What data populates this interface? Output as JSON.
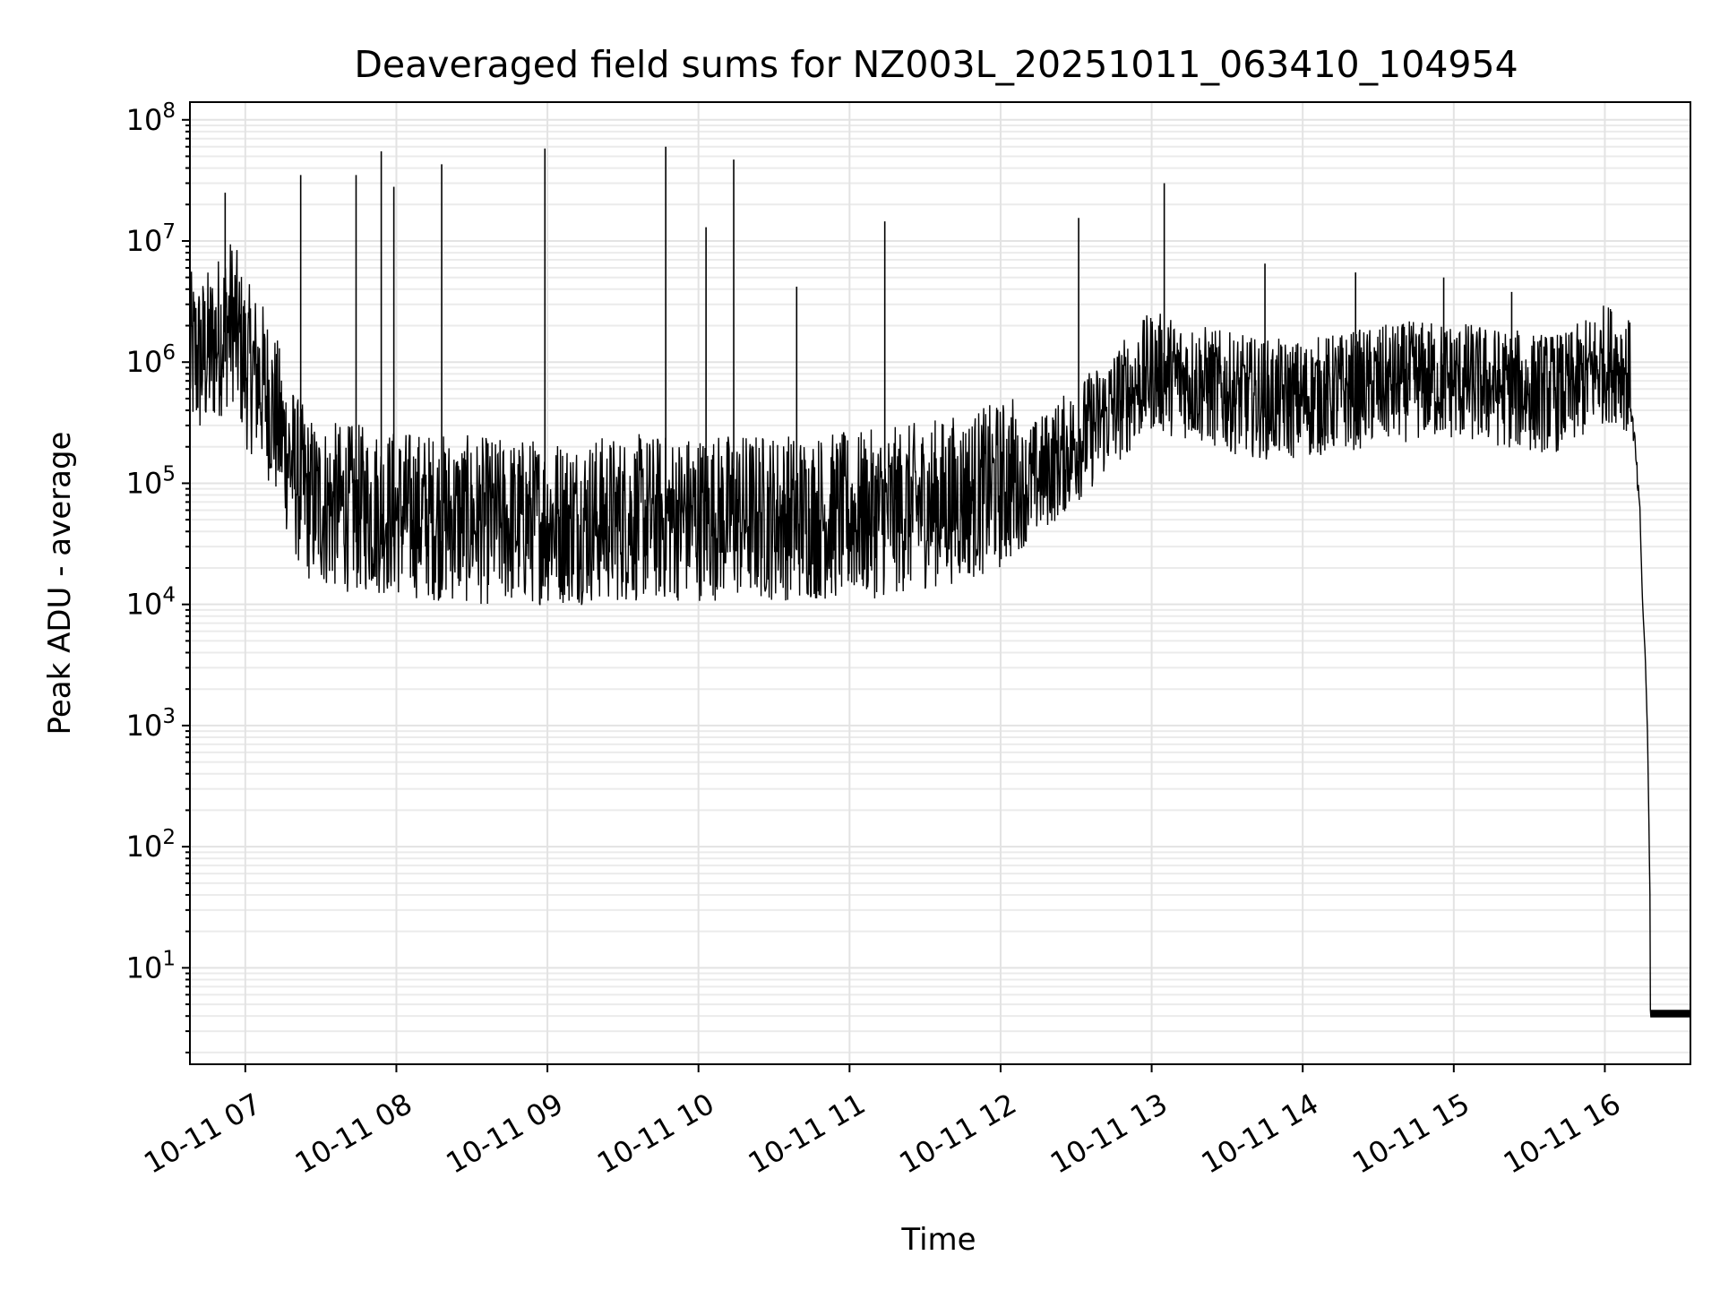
{
  "chart_data": {
    "type": "line",
    "title": "Deaveraged field sums for NZ003L_20251011_063410_104954",
    "xlabel": "Time",
    "ylabel": "Peak ADU - average",
    "yscale": "log",
    "ylim": [
      1.6,
      140000000
    ],
    "xlim": [
      "2025-10-11 06:38",
      "2025-10-11 16:34"
    ],
    "grid": true,
    "line_color": "#000000",
    "x_ticks": [
      {
        "value": "2025-10-11 07:00",
        "label": "10-11 07"
      },
      {
        "value": "2025-10-11 08:00",
        "label": "10-11 08"
      },
      {
        "value": "2025-10-11 09:00",
        "label": "10-11 09"
      },
      {
        "value": "2025-10-11 10:00",
        "label": "10-11 10"
      },
      {
        "value": "2025-10-11 11:00",
        "label": "10-11 11"
      },
      {
        "value": "2025-10-11 12:00",
        "label": "10-11 12"
      },
      {
        "value": "2025-10-11 13:00",
        "label": "10-11 13"
      },
      {
        "value": "2025-10-11 14:00",
        "label": "10-11 14"
      },
      {
        "value": "2025-10-11 15:00",
        "label": "10-11 15"
      },
      {
        "value": "2025-10-11 16:00",
        "label": "10-11 16"
      }
    ],
    "y_ticks": [
      {
        "value": 10,
        "base": "10",
        "exp": "1"
      },
      {
        "value": 100,
        "base": "10",
        "exp": "2"
      },
      {
        "value": 1000,
        "base": "10",
        "exp": "3"
      },
      {
        "value": 10000,
        "base": "10",
        "exp": "4"
      },
      {
        "value": 100000,
        "base": "10",
        "exp": "5"
      },
      {
        "value": 1000000,
        "base": "10",
        "exp": "6"
      },
      {
        "value": 10000000,
        "base": "10",
        "exp": "7"
      },
      {
        "value": 100000000,
        "base": "10",
        "exp": "8"
      }
    ],
    "series": [
      {
        "x": [
          "2025-10-11 06:38",
          "2025-10-11 06:42",
          "2025-10-11 06:46",
          "2025-10-11 06:50",
          "2025-10-11 06:55",
          "2025-10-11 07:00",
          "2025-10-11 07:05",
          "2025-10-11 07:10",
          "2025-10-11 07:15",
          "2025-10-11 07:20",
          "2025-10-11 07:25",
          "2025-10-11 07:30",
          "2025-10-11 07:40",
          "2025-10-11 07:50",
          "2025-10-11 08:00",
          "2025-10-11 08:15",
          "2025-10-11 08:30",
          "2025-10-11 08:45",
          "2025-10-11 09:00",
          "2025-10-11 09:15",
          "2025-10-11 09:30",
          "2025-10-11 09:45",
          "2025-10-11 10:00",
          "2025-10-11 10:15",
          "2025-10-11 10:30",
          "2025-10-11 10:45",
          "2025-10-11 11:00",
          "2025-10-11 11:15",
          "2025-10-11 11:30",
          "2025-10-11 11:45",
          "2025-10-11 12:00",
          "2025-10-11 12:15",
          "2025-10-11 12:30",
          "2025-10-11 12:45",
          "2025-10-11 13:00",
          "2025-10-11 13:15",
          "2025-10-11 13:30",
          "2025-10-11 13:45",
          "2025-10-11 14:00",
          "2025-10-11 14:15",
          "2025-10-11 14:30",
          "2025-10-11 14:45",
          "2025-10-11 15:00",
          "2025-10-11 15:15",
          "2025-10-11 15:30",
          "2025-10-11 15:45",
          "2025-10-11 16:00",
          "2025-10-11 16:06",
          "2025-10-11 16:10",
          "2025-10-11 16:12",
          "2025-10-11 16:14",
          "2025-10-11 16:15",
          "2025-10-11 16:16",
          "2025-10-11 16:17",
          "2025-10-11 16:18",
          "2025-10-11 16:20",
          "2025-10-11 16:25",
          "2025-10-11 16:30",
          "2025-10-11 16:34"
        ],
        "y": [
          600000,
          550000,
          650000,
          900000,
          1200000,
          500000,
          400000,
          250000,
          120000,
          60000,
          40000,
          35000,
          33000,
          32000,
          30000,
          28000,
          26000,
          25000,
          26000,
          26000,
          27000,
          27000,
          28000,
          28000,
          28000,
          28000,
          28000,
          30000,
          35000,
          40000,
          50000,
          80000,
          150000,
          300000,
          600000,
          500000,
          400000,
          350000,
          350000,
          400000,
          450000,
          500000,
          500000,
          450000,
          400000,
          400000,
          700000,
          700000,
          500000,
          200000,
          50000,
          10000,
          4000,
          800,
          30,
          4,
          4,
          4,
          4
        ],
        "spikes": [
          {
            "x": "2025-10-11 06:52",
            "y": 25000000
          },
          {
            "x": "2025-10-11 07:22",
            "y": 35000000
          },
          {
            "x": "2025-10-11 07:44",
            "y": 35000000
          },
          {
            "x": "2025-10-11 07:54",
            "y": 55000000
          },
          {
            "x": "2025-10-11 07:59",
            "y": 28000000
          },
          {
            "x": "2025-10-11 08:18",
            "y": 43000000
          },
          {
            "x": "2025-10-11 08:59",
            "y": 58000000
          },
          {
            "x": "2025-10-11 09:47",
            "y": 60000000
          },
          {
            "x": "2025-10-11 10:03",
            "y": 13000000
          },
          {
            "x": "2025-10-11 10:14",
            "y": 47000000
          },
          {
            "x": "2025-10-11 10:39",
            "y": 4200000
          },
          {
            "x": "2025-10-11 11:14",
            "y": 14500000
          },
          {
            "x": "2025-10-11 12:31",
            "y": 15500000
          },
          {
            "x": "2025-10-11 13:05",
            "y": 30000000
          },
          {
            "x": "2025-10-11 13:45",
            "y": 6500000
          },
          {
            "x": "2025-10-11 14:21",
            "y": 5500000
          },
          {
            "x": "2025-10-11 14:56",
            "y": 5000000
          },
          {
            "x": "2025-10-11 15:23",
            "y": 3800000
          }
        ]
      }
    ]
  }
}
